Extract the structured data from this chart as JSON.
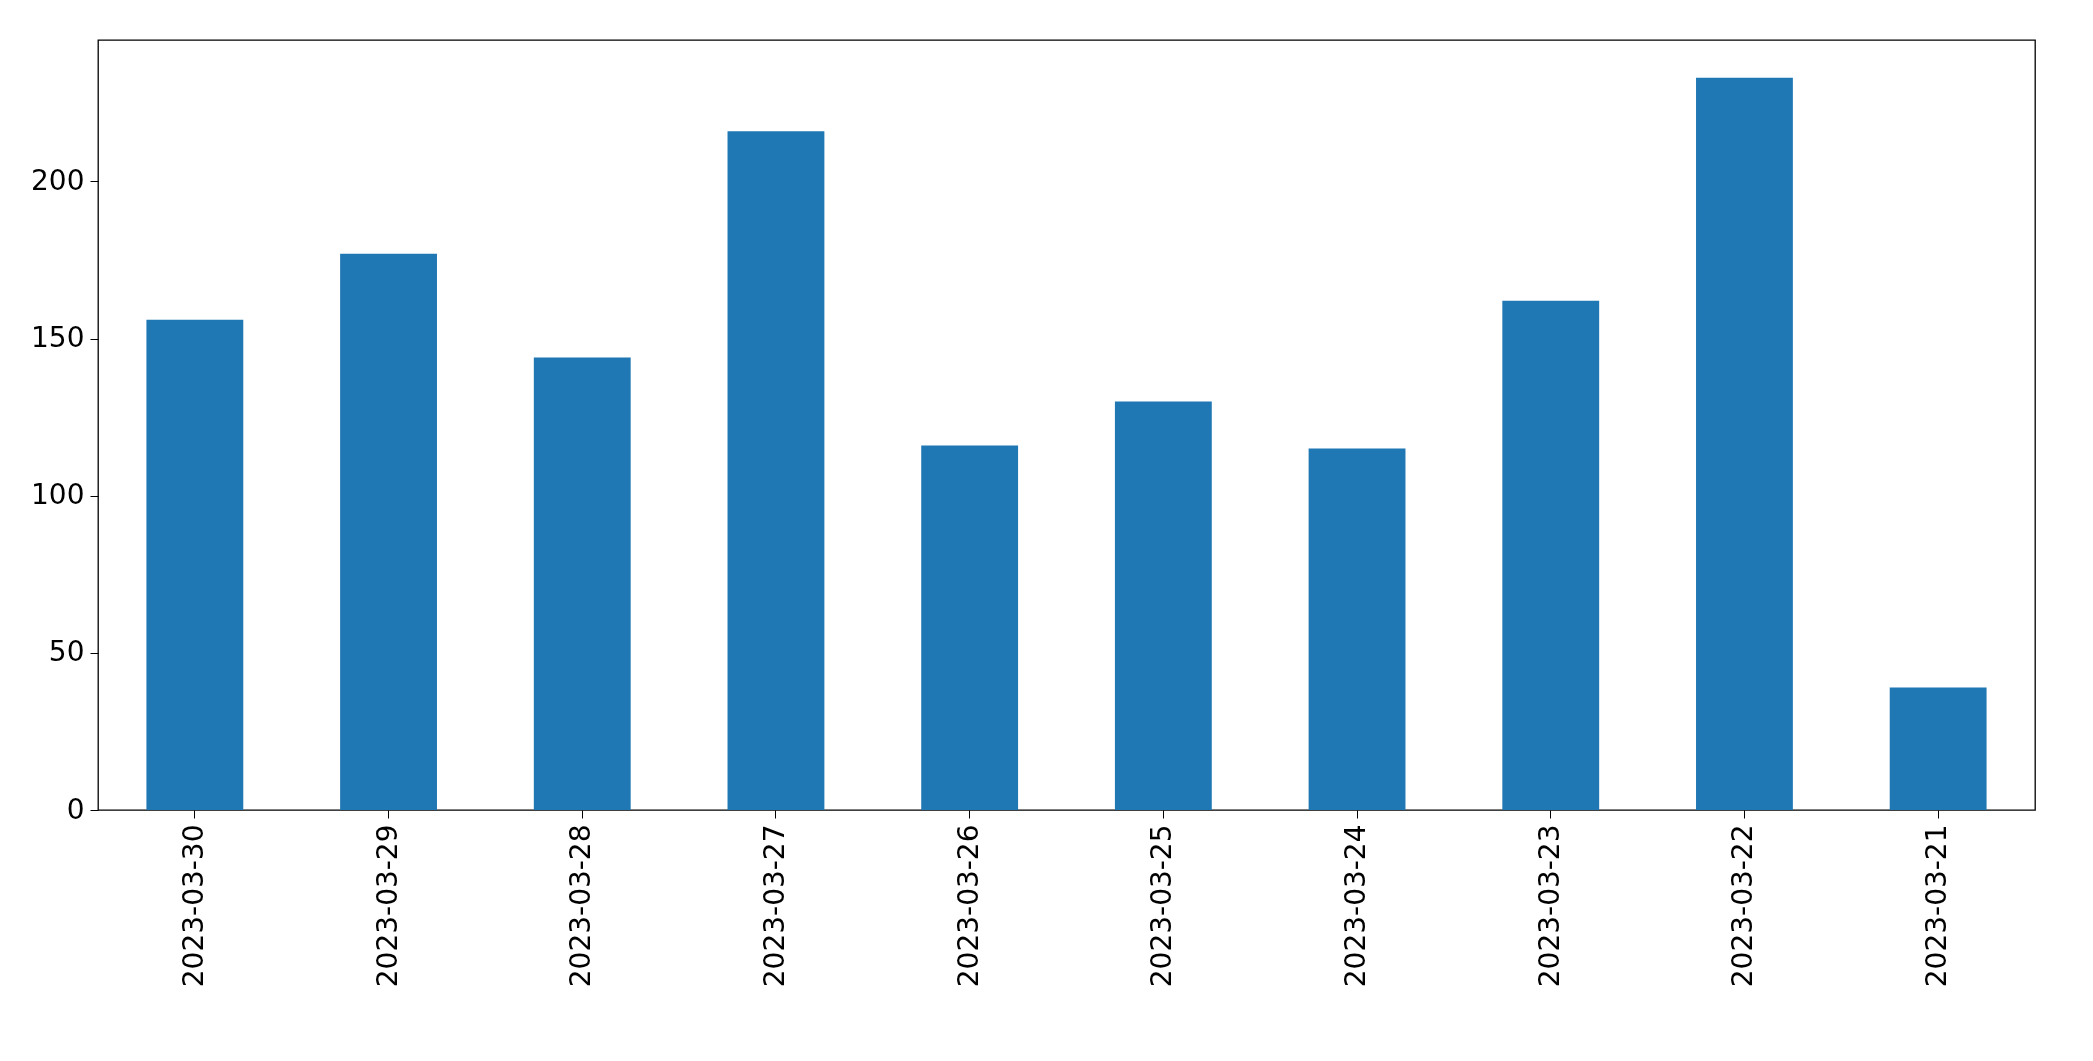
{
  "chart_data": {
    "type": "bar",
    "categories": [
      "2023-03-30",
      "2023-03-29",
      "2023-03-28",
      "2023-03-27",
      "2023-03-26",
      "2023-03-25",
      "2023-03-24",
      "2023-03-23",
      "2023-03-22",
      "2023-03-21"
    ],
    "values": [
      156,
      177,
      144,
      216,
      116,
      130,
      115,
      162,
      233,
      39
    ],
    "color": "#1f77b4",
    "ylim": [
      0,
      245
    ],
    "yticks": [
      0,
      50,
      100,
      150,
      200
    ],
    "grid": false
  }
}
